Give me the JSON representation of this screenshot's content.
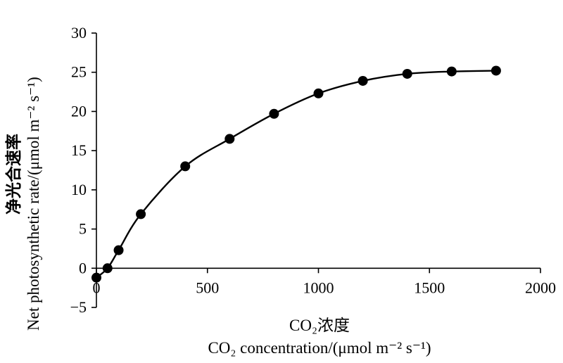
{
  "chart_data": {
    "type": "scatter",
    "title": "",
    "xlabel_cn": "CO₂浓度",
    "xlabel": "CO₂ concentration/(μmol m⁻² s⁻¹)",
    "ylabel_cn": "净光合速率",
    "ylabel": "Net photosynthetic rate/(μmol m⁻² s⁻¹)",
    "xlim": [
      0,
      2000
    ],
    "ylim": [
      -5,
      30
    ],
    "xticks": [
      0,
      500,
      1000,
      1500,
      2000
    ],
    "xtick_labels": [
      "0",
      "500",
      "1000",
      "1500",
      "2000"
    ],
    "yticks": [
      -5,
      0,
      5,
      10,
      15,
      20,
      25,
      30
    ],
    "ytick_labels": [
      "−5",
      "0",
      "5",
      "10",
      "15",
      "20",
      "25",
      "30"
    ],
    "grid": false,
    "legend": "none",
    "series": [
      {
        "x": [
          0,
          50,
          100,
          200,
          400,
          600,
          800,
          1000,
          1200,
          1400,
          1600,
          1800
        ],
        "y": [
          -1.2,
          0.0,
          2.3,
          6.9,
          13.0,
          16.5,
          19.7,
          22.3,
          23.9,
          24.8,
          25.1,
          25.2
        ]
      }
    ],
    "fit_curve": true,
    "marker_color": "#000000",
    "line_color": "#000000"
  }
}
